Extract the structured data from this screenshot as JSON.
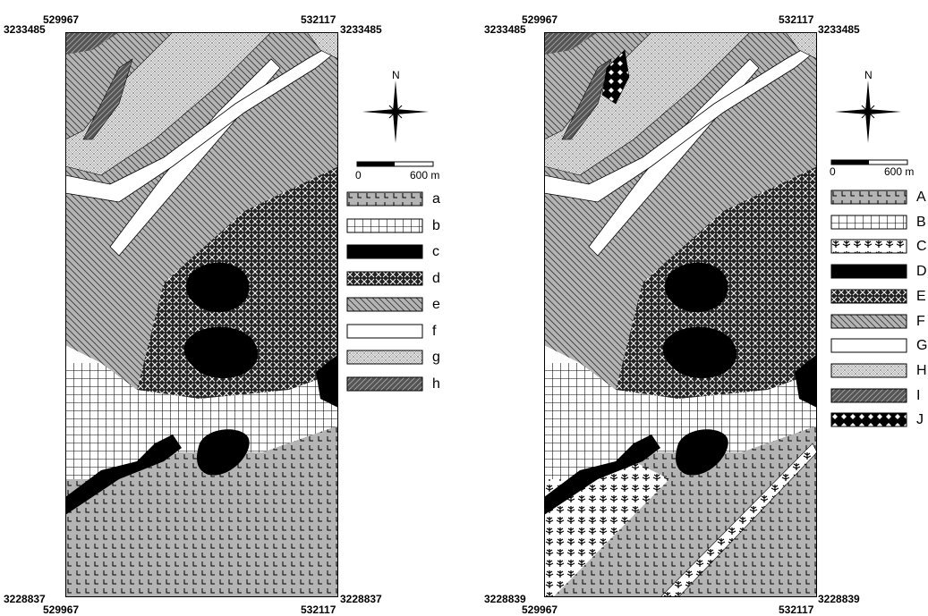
{
  "maps": [
    {
      "id": "left",
      "coords": {
        "top_left_x": "529967",
        "top_right_x": "532117",
        "top_left_y": "3233485",
        "top_right_y": "3233485",
        "bottom_left_y": "3228837",
        "bottom_right_y": "3228837",
        "bottom_left_x": "529967",
        "bottom_right_x": "532117"
      },
      "north_label": "N",
      "scale": {
        "start": "0",
        "end": "600 m"
      },
      "legend": [
        {
          "label": "a",
          "pattern": "hatch-L"
        },
        {
          "label": "b",
          "pattern": "grid"
        },
        {
          "label": "c",
          "pattern": "solid-black"
        },
        {
          "label": "d",
          "pattern": "dark-cross"
        },
        {
          "label": "e",
          "pattern": "diag-gray"
        },
        {
          "label": "f",
          "pattern": "white"
        },
        {
          "label": "g",
          "pattern": "light-cross"
        },
        {
          "label": "h",
          "pattern": "diag-dark"
        }
      ]
    },
    {
      "id": "right",
      "coords": {
        "top_left_x": "529967",
        "top_right_x": "532117",
        "top_left_y": "3233485",
        "top_right_y": "3233485",
        "bottom_left_y": "3228839",
        "bottom_right_y": "3228839",
        "bottom_left_x": "529967",
        "bottom_right_x": "532117"
      },
      "north_label": "N",
      "scale": {
        "start": "0",
        "end": "600 m"
      },
      "legend": [
        {
          "label": "A",
          "pattern": "hatch-L"
        },
        {
          "label": "B",
          "pattern": "grid"
        },
        {
          "label": "C",
          "pattern": "tree"
        },
        {
          "label": "D",
          "pattern": "solid-black"
        },
        {
          "label": "E",
          "pattern": "dark-cross"
        },
        {
          "label": "F",
          "pattern": "diag-gray"
        },
        {
          "label": "G",
          "pattern": "white"
        },
        {
          "label": "H",
          "pattern": "light-cross"
        },
        {
          "label": "I",
          "pattern": "diag-dark"
        },
        {
          "label": "J",
          "pattern": "dots-black"
        }
      ]
    }
  ],
  "colors": {
    "gray_fill": "#b4b4b4",
    "dark_fill": "#555555",
    "black": "#000000",
    "white": "#ffffff"
  }
}
